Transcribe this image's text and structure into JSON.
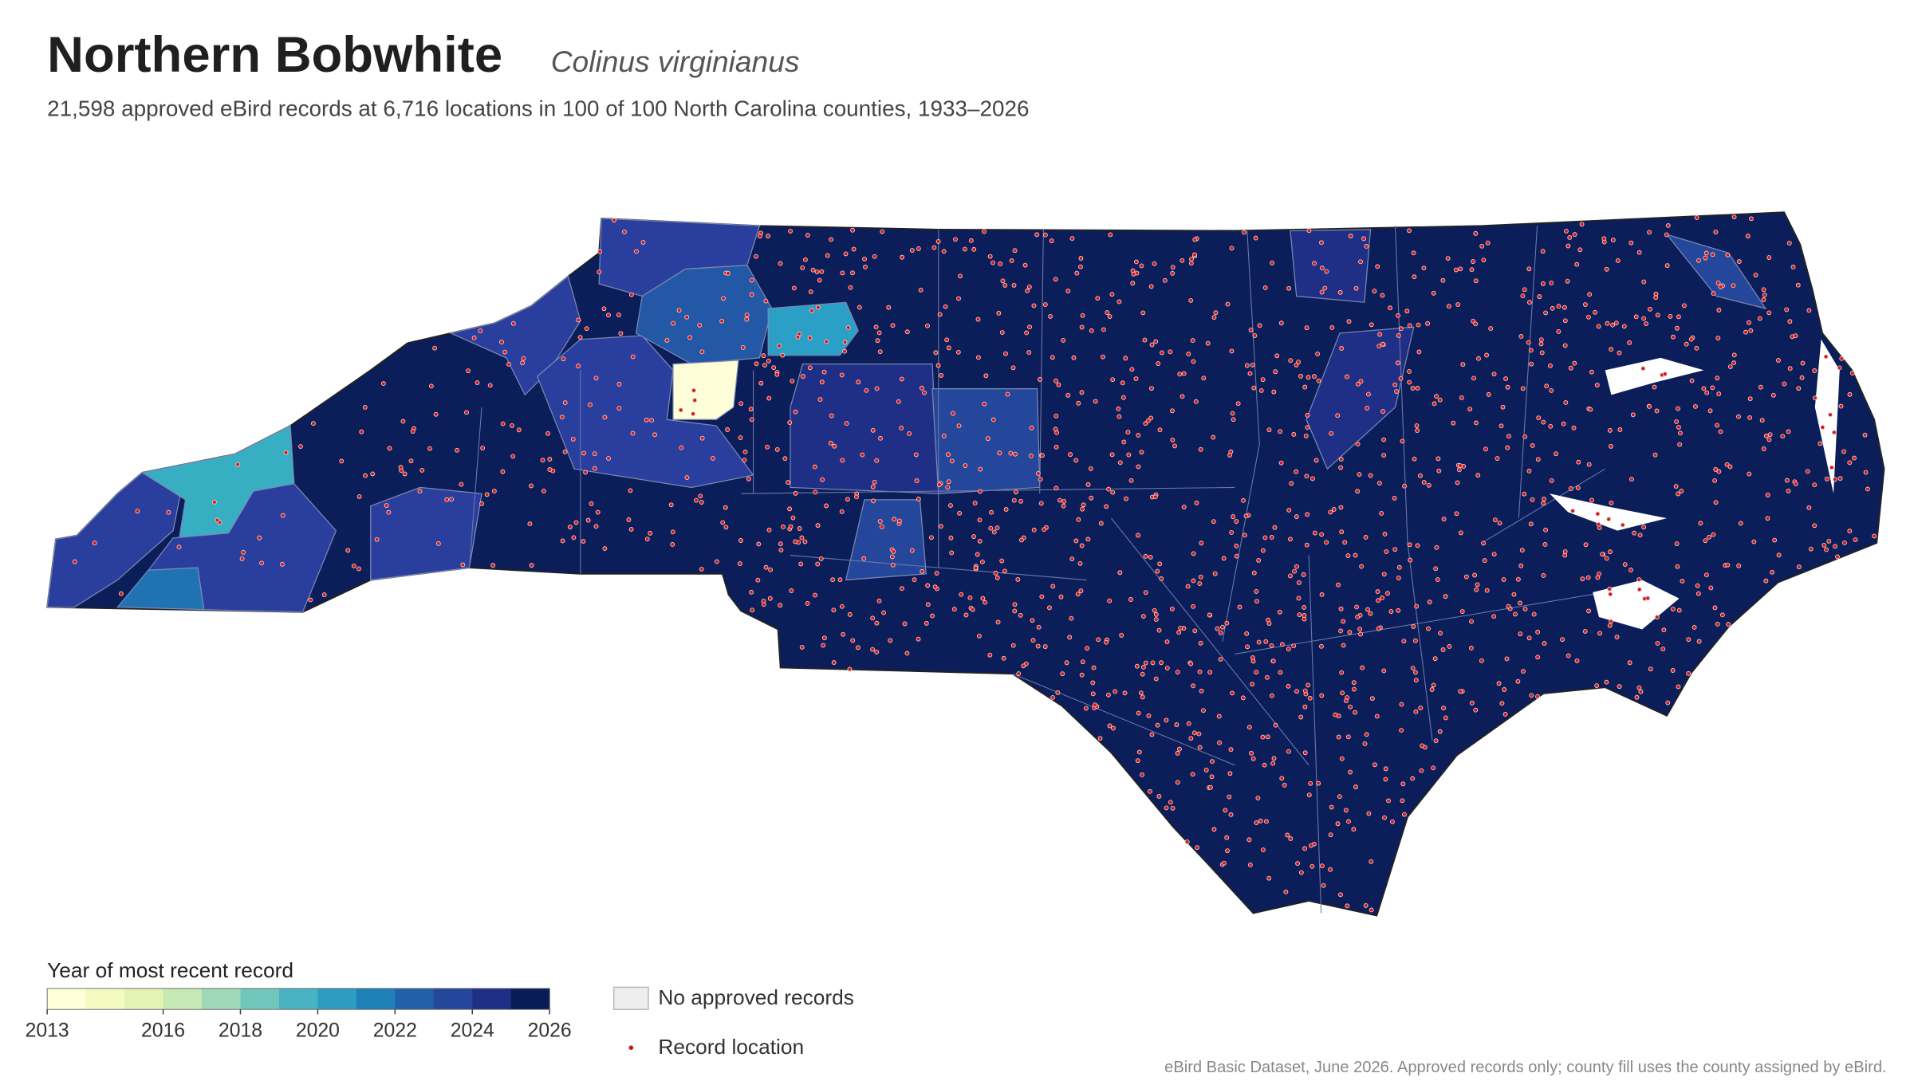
{
  "header": {
    "title": "Northern Bobwhite",
    "species": "Colinus virginianus",
    "subtitle": "21,598 approved eBird records at 6,716 locations in 100 of 100 North Carolina counties, 1933–2026"
  },
  "legend": {
    "title": "Year of most recent record",
    "range": [
      2013,
      2026
    ],
    "ticks": [
      2013,
      2016,
      2018,
      2020,
      2022,
      2024,
      2026
    ],
    "colors": [
      "#ffffd9",
      "#f3fac2",
      "#e2f3b2",
      "#c6e8b4",
      "#9ed8b8",
      "#72c7bd",
      "#4ab3c3",
      "#2c9dc0",
      "#1f7fb7",
      "#2260a9",
      "#24479c",
      "#1f2f86",
      "#081d58"
    ],
    "no_records": "No approved records",
    "record_location": "Record location"
  },
  "footer": "eBird Basic Dataset, June 2026. Approved records only; county fill uses the county assigned by eBird."
}
